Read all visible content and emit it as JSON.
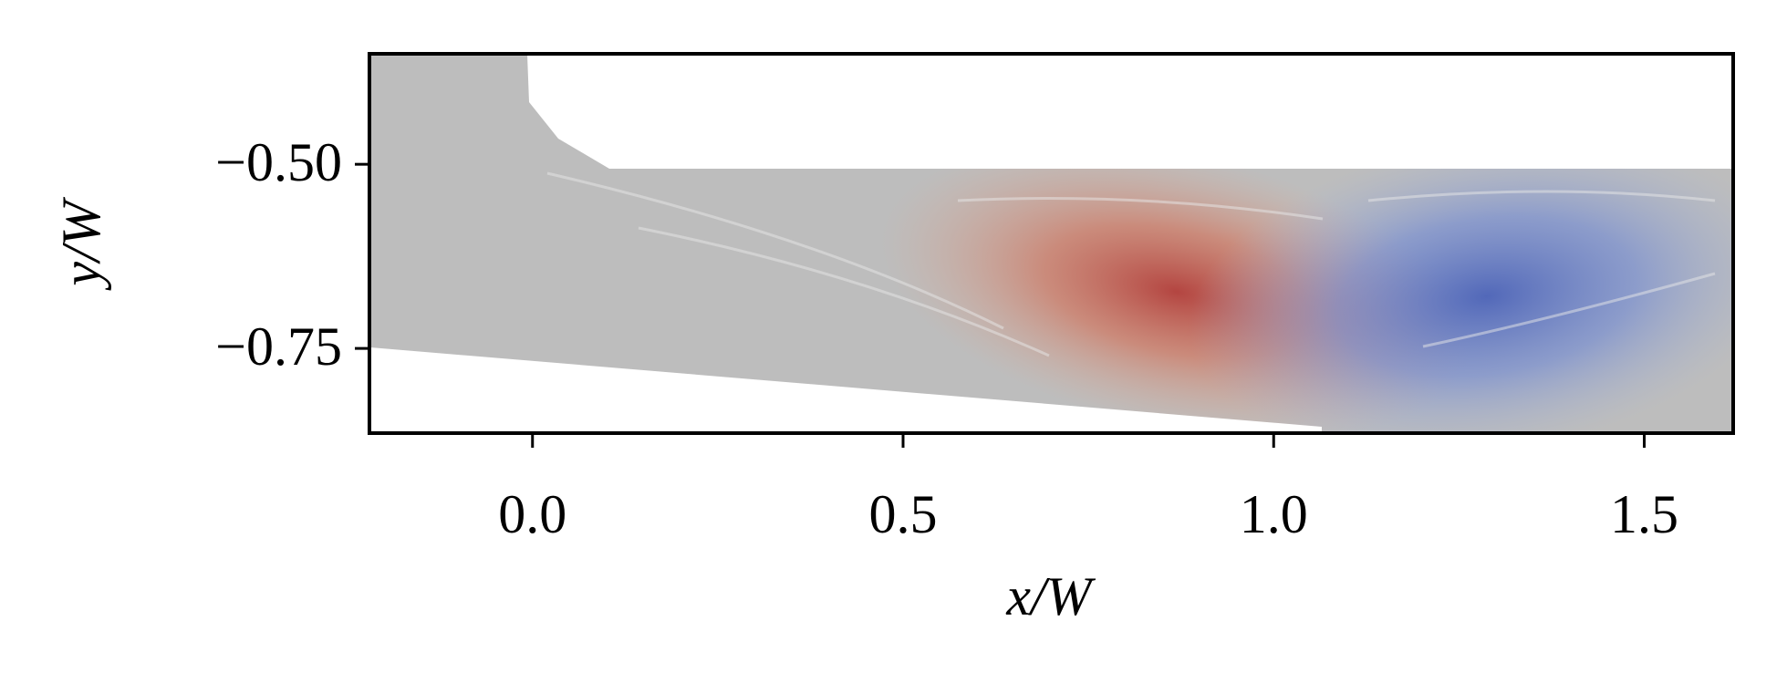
{
  "chart_data": {
    "type": "contour",
    "xlabel": "x/W",
    "ylabel": "y/W",
    "xlim": [
      -0.22,
      1.62
    ],
    "ylim": [
      -0.865,
      -0.35
    ],
    "xticks": [
      {
        "value": 0,
        "label": "0.0"
      },
      0.5,
      {
        "value": 1,
        "label": "1.0"
      },
      1.5
    ],
    "yticks": [
      {
        "value": -0.5,
        "label": "−0.50"
      },
      {
        "value": -0.75,
        "label": "−0.75"
      }
    ]
  }
}
